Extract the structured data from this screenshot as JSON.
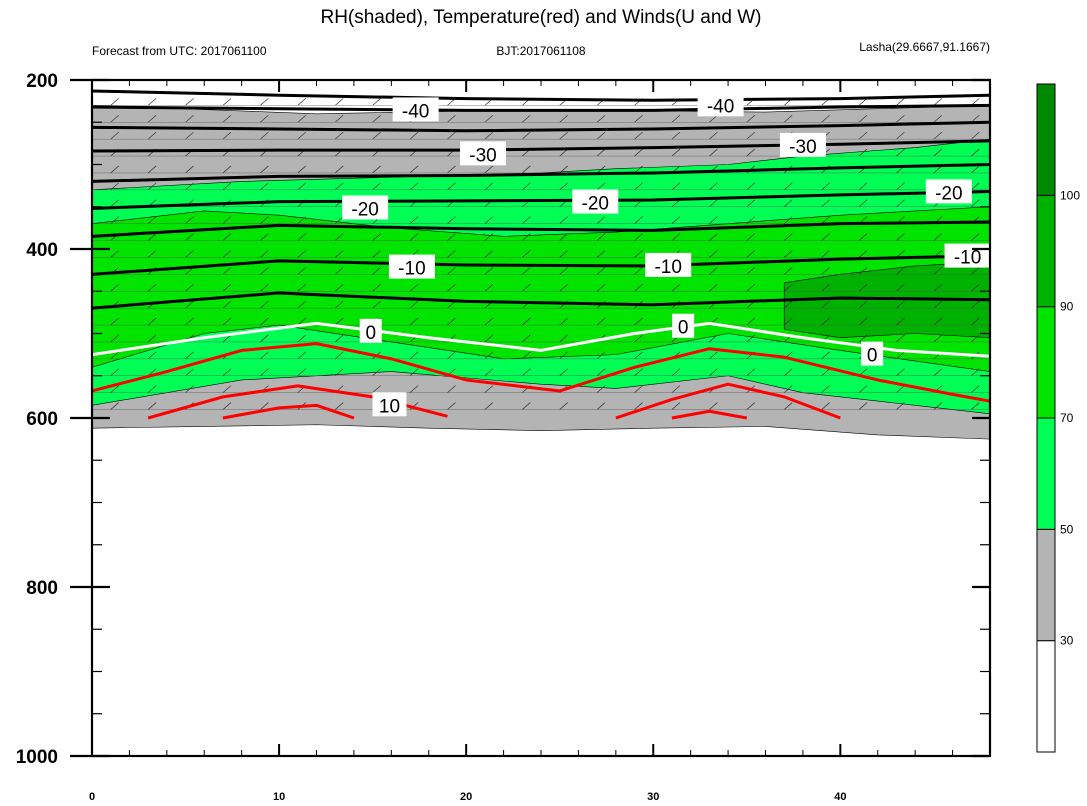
{
  "chart_data": {
    "type": "heatmap",
    "title": "RH(shaded), Temperature(red) and Winds(U and W)",
    "subtitle_left": "Forecast from UTC: 2017061100",
    "subtitle_center": "BJT:2017061108",
    "subtitle_right": "Lasha(29.6667,91.1667)",
    "xlim": [
      0,
      48
    ],
    "ylim": [
      1000,
      200
    ],
    "y_ticks": [
      200,
      400,
      600,
      800,
      1000
    ],
    "x_ticks": [
      0,
      10,
      20,
      30,
      40
    ],
    "colorbar": {
      "levels": [
        30,
        50,
        70,
        90,
        100
      ],
      "colors": [
        "#ffffff",
        "#b4b4b4",
        "#00ff54",
        "#00e400",
        "#00b200",
        "#008a00"
      ]
    },
    "rh_bands": [
      {
        "name": "rh-50-70",
        "color": "#00ff54",
        "x": [
          0,
          8,
          16,
          24,
          28,
          34,
          38,
          44,
          48
        ],
        "top": [
          330,
          320,
          315,
          310,
          305,
          300,
          290,
          280,
          270
        ],
        "bottom": [
          585,
          555,
          545,
          560,
          565,
          550,
          570,
          585,
          595
        ]
      },
      {
        "name": "rh-70-90",
        "color": "#00e400",
        "x": [
          0,
          6,
          10,
          16,
          22,
          28,
          34,
          40,
          48
        ],
        "top": [
          370,
          355,
          360,
          375,
          385,
          380,
          370,
          360,
          350
        ],
        "bottom": [
          540,
          500,
          490,
          510,
          530,
          525,
          500,
          520,
          545
        ]
      },
      {
        "name": "rh-90-100",
        "color": "#00b200",
        "x": [
          37,
          40,
          44,
          48
        ],
        "top": [
          440,
          430,
          420,
          415
        ],
        "bottom": [
          495,
          505,
          500,
          505
        ]
      }
    ],
    "temperature_contours": [
      {
        "level": -40,
        "color": "#000000",
        "x": [
          0,
          10,
          20,
          30,
          40,
          48
        ],
        "y": [
          213,
          218,
          222,
          224,
          222,
          218
        ]
      },
      {
        "level": -40,
        "color": "#000000",
        "x": [
          0,
          10,
          20,
          30,
          40,
          48
        ],
        "y": [
          232,
          234,
          236,
          236,
          232,
          230
        ]
      },
      {
        "level": -30,
        "color": "#000000",
        "x": [
          0,
          10,
          20,
          30,
          40,
          48
        ],
        "y": [
          256,
          258,
          260,
          258,
          254,
          250
        ]
      },
      {
        "level": -30,
        "color": "#000000",
        "x": [
          0,
          10,
          20,
          30,
          40,
          48
        ],
        "y": [
          284,
          283,
          283,
          280,
          276,
          272
        ]
      },
      {
        "level": -20,
        "color": "#000000",
        "x": [
          0,
          10,
          20,
          30,
          40,
          48
        ],
        "y": [
          320,
          314,
          313,
          310,
          304,
          300
        ]
      },
      {
        "level": -20,
        "color": "#000000",
        "x": [
          0,
          10,
          20,
          30,
          40,
          48
        ],
        "y": [
          352,
          344,
          343,
          342,
          336,
          332
        ]
      },
      {
        "level": -10,
        "color": "#000000",
        "x": [
          0,
          10,
          20,
          30,
          40,
          48
        ],
        "y": [
          385,
          372,
          376,
          378,
          370,
          368
        ]
      },
      {
        "level": -10,
        "color": "#000000",
        "x": [
          0,
          10,
          20,
          30,
          40,
          48
        ],
        "y": [
          430,
          414,
          419,
          420,
          412,
          408
        ]
      },
      {
        "level": -10,
        "color": "#000000",
        "x": [
          0,
          10,
          20,
          30,
          40,
          48
        ],
        "y": [
          470,
          452,
          462,
          466,
          458,
          460
        ]
      },
      {
        "level": 0,
        "color": "#ffffff",
        "x": [
          0,
          6,
          12,
          18,
          24,
          29,
          33,
          38,
          43,
          48
        ],
        "y": [
          525,
          505,
          488,
          505,
          520,
          500,
          488,
          505,
          520,
          527
        ]
      },
      {
        "level": 10,
        "color": "#ff0000",
        "x": [
          0,
          4,
          8,
          12,
          16,
          20,
          25,
          29,
          33,
          37,
          42,
          46,
          48
        ],
        "y": [
          568,
          545,
          520,
          512,
          530,
          555,
          568,
          540,
          518,
          528,
          555,
          572,
          580
        ]
      },
      {
        "level": 10,
        "color": "#ff0000",
        "x": [
          3,
          7,
          11,
          15,
          19
        ],
        "y": [
          600,
          575,
          562,
          575,
          598
        ]
      },
      {
        "level": 10,
        "color": "#ff0000",
        "x": [
          7,
          10,
          12,
          14
        ],
        "y": [
          600,
          588,
          585,
          600
        ]
      },
      {
        "level": 10,
        "color": "#ff0000",
        "x": [
          28,
          31,
          34,
          37,
          40
        ],
        "y": [
          600,
          578,
          560,
          575,
          600
        ]
      },
      {
        "level": 10,
        "color": "#ff0000",
        "x": [
          31,
          33,
          35
        ],
        "y": [
          600,
          592,
          600
        ]
      }
    ],
    "contour_labels": [
      {
        "text": "-40",
        "x": 17.3,
        "y": 236
      },
      {
        "text": "-40",
        "x": 33.6,
        "y": 230
      },
      {
        "text": "-30",
        "x": 20.9,
        "y": 288
      },
      {
        "text": "-30",
        "x": 38.0,
        "y": 278
      },
      {
        "text": "-20",
        "x": 14.6,
        "y": 352
      },
      {
        "text": "-20",
        "x": 26.9,
        "y": 345
      },
      {
        "text": "-20",
        "x": 45.8,
        "y": 333
      },
      {
        "text": "-10",
        "x": 17.1,
        "y": 422
      },
      {
        "text": "-10",
        "x": 30.8,
        "y": 420
      },
      {
        "text": "-10",
        "x": 46.8,
        "y": 409
      },
      {
        "text": "0",
        "x": 14.9,
        "y": 498
      },
      {
        "text": "0",
        "x": 31.6,
        "y": 492
      },
      {
        "text": "0",
        "x": 41.7,
        "y": 525
      },
      {
        "text": "10",
        "x": 15.9,
        "y": 585
      }
    ]
  }
}
